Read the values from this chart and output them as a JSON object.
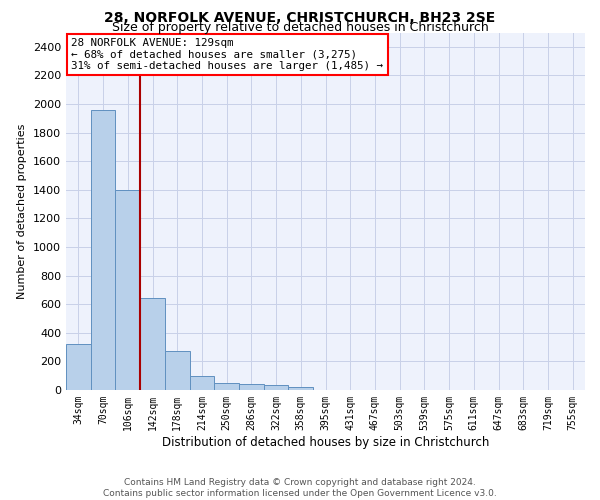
{
  "title": "28, NORFOLK AVENUE, CHRISTCHURCH, BH23 2SE",
  "subtitle": "Size of property relative to detached houses in Christchurch",
  "xlabel": "Distribution of detached houses by size in Christchurch",
  "ylabel": "Number of detached properties",
  "footer_line1": "Contains HM Land Registry data © Crown copyright and database right 2024.",
  "footer_line2": "Contains public sector information licensed under the Open Government Licence v3.0.",
  "categories": [
    "34sqm",
    "70sqm",
    "106sqm",
    "142sqm",
    "178sqm",
    "214sqm",
    "250sqm",
    "286sqm",
    "322sqm",
    "358sqm",
    "395sqm",
    "431sqm",
    "467sqm",
    "503sqm",
    "539sqm",
    "575sqm",
    "611sqm",
    "647sqm",
    "683sqm",
    "719sqm",
    "755sqm"
  ],
  "bar_values": [
    325,
    1960,
    1400,
    640,
    270,
    100,
    47,
    40,
    38,
    22,
    0,
    0,
    0,
    0,
    0,
    0,
    0,
    0,
    0,
    0,
    0
  ],
  "bar_color": "#b8d0ea",
  "bar_edge_color": "#6090c0",
  "grid_color": "#c8d0e8",
  "background_color": "#eef2fc",
  "vline_color": "#aa0000",
  "vline_x_index": 2.5,
  "annotation_line1": "28 NORFOLK AVENUE: 129sqm",
  "annotation_line2": "← 68% of detached houses are smaller (3,275)",
  "annotation_line3": "31% of semi-detached houses are larger (1,485) →",
  "ylim": [
    0,
    2500
  ],
  "yticks": [
    0,
    200,
    400,
    600,
    800,
    1000,
    1200,
    1400,
    1600,
    1800,
    2000,
    2200,
    2400
  ],
  "title_fontsize": 10,
  "subtitle_fontsize": 9,
  "ylabel_fontsize": 8,
  "xlabel_fontsize": 8.5,
  "footer_fontsize": 6.5,
  "tick_fontsize": 8,
  "xtick_fontsize": 7
}
